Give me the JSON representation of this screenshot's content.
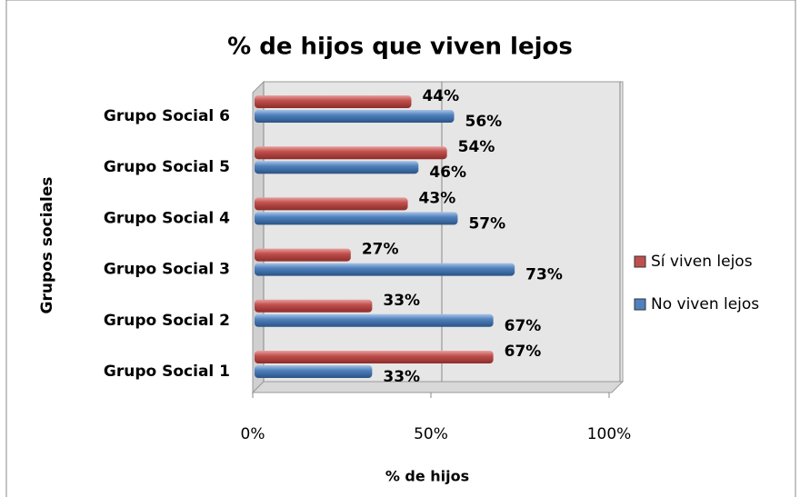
{
  "chart_data": {
    "type": "bar",
    "orientation": "horizontal",
    "title": "% de hijos que viven lejos",
    "x_label": "% de hijos",
    "y_label": "Grupos sociales",
    "categories": [
      "Grupo Social 1",
      "Grupo Social  2",
      "Grupo Social 3",
      "Grupo Social  4",
      "Grupo Social  5",
      "Grupo Social 6"
    ],
    "series": [
      {
        "name": "Sí viven lejos",
        "color": "#c0504d",
        "values": [
          67,
          33,
          27,
          43,
          54,
          44
        ],
        "value_labels": [
          "67%",
          "33%",
          "27%",
          "43%",
          "54%",
          "44%"
        ]
      },
      {
        "name": "No viven lejos",
        "color": "#4f81bd",
        "values": [
          33,
          67,
          73,
          57,
          46,
          56
        ],
        "value_labels": [
          "33%",
          "67%",
          "73%",
          "57%",
          "46%",
          "56%"
        ]
      }
    ],
    "xlim": [
      0,
      100
    ],
    "xticks": [
      {
        "value": 0,
        "label": "0%"
      },
      {
        "value": 50,
        "label": "50%"
      },
      {
        "value": 100,
        "label": "100%"
      }
    ],
    "grid": true,
    "legend": "right"
  }
}
